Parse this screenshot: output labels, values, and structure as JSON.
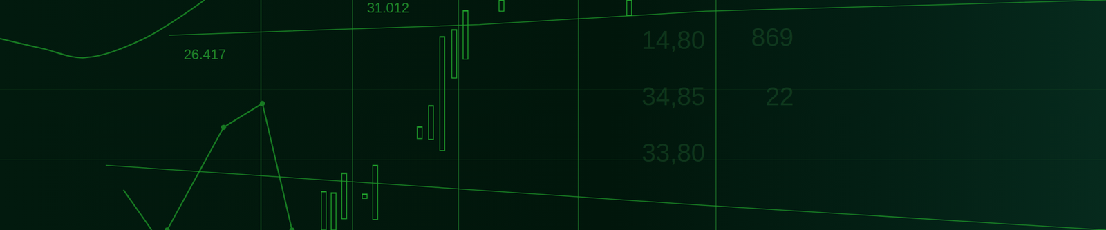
{
  "chart_data": {
    "type": "candlestick",
    "color": "#1f9a2a",
    "grid": true,
    "tick_labels": false,
    "xlim": [
      0,
      1568
    ],
    "ylim": [
      0,
      327
    ],
    "xticks": [
      370,
      500,
      650,
      820,
      1015
    ],
    "yticks": [
      100,
      200
    ],
    "x": [
      459,
      473,
      488,
      517,
      532,
      595,
      611,
      627,
      644,
      660,
      711,
      892
    ],
    "open": [
      0,
      0,
      16,
      45,
      15,
      130,
      129,
      113,
      216,
      243,
      311,
      305
    ],
    "close": [
      55,
      53,
      81,
      51,
      92,
      147,
      177,
      275,
      285,
      312,
      327,
      327
    ],
    "lines": [
      {
        "x": [
          175,
          215
        ],
        "values": [
          57,
          0
        ]
      },
      {
        "x": [
          237,
          317,
          372,
          414
        ],
        "values": [
          0,
          146,
          180,
          0
        ]
      },
      {
        "x": [
          0,
          60,
          120,
          200,
          290
        ],
        "values": [
          272,
          258,
          245,
          270,
          327
        ]
      },
      {
        "x": [
          240,
          680,
          1000,
          1568
        ],
        "values": [
          277,
          292,
          311,
          327
        ]
      },
      {
        "x": [
          150,
          600,
          1000,
          1568
        ],
        "values": [
          92,
          62,
          35,
          0
        ]
      }
    ],
    "annotations": [
      {
        "text": "31.012",
        "x": 550,
        "y": 316
      },
      {
        "text": "26.417",
        "x": 290,
        "y": 250
      },
      {
        "text": "14,80",
        "x": 955,
        "y": 270
      },
      {
        "text": "869",
        "x": 1095,
        "y": 274
      },
      {
        "text": "34,85",
        "x": 955,
        "y": 190
      },
      {
        "text": "22",
        "x": 1105,
        "y": 190
      },
      {
        "text": "33,80",
        "x": 955,
        "y": 110
      }
    ]
  }
}
